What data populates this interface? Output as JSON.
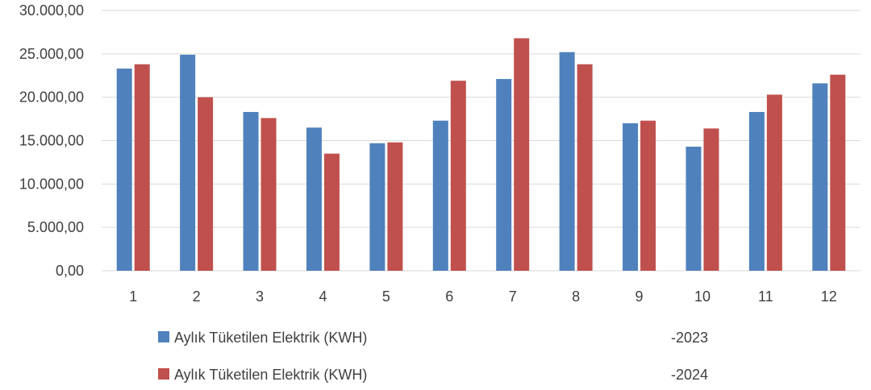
{
  "chart_data": {
    "type": "bar",
    "categories": [
      "1",
      "2",
      "3",
      "4",
      "5",
      "6",
      "7",
      "8",
      "9",
      "10",
      "11",
      "12"
    ],
    "series": [
      {
        "name": "Aylık Tüketilen Elektrik (KWH)",
        "suffix": "-2023",
        "color": "#4F81BD",
        "values": [
          23300,
          24900,
          18300,
          16500,
          14700,
          17300,
          22100,
          25200,
          17000,
          14300,
          18300,
          21600
        ]
      },
      {
        "name": "Aylık Tüketilen Elektrik (KWH)",
        "suffix": "-2024",
        "color": "#C0504D",
        "values": [
          23800,
          20000,
          17600,
          13500,
          14800,
          21900,
          26800,
          23800,
          17300,
          16400,
          20300,
          22600
        ]
      }
    ],
    "yticks": [
      "0,00",
      "5.000,00",
      "10.000,00",
      "15.000,00",
      "20.000,00",
      "25.000,00",
      "30.000,00"
    ],
    "ylim": [
      0,
      30000
    ],
    "grid": true,
    "legend_position": "bottom"
  }
}
